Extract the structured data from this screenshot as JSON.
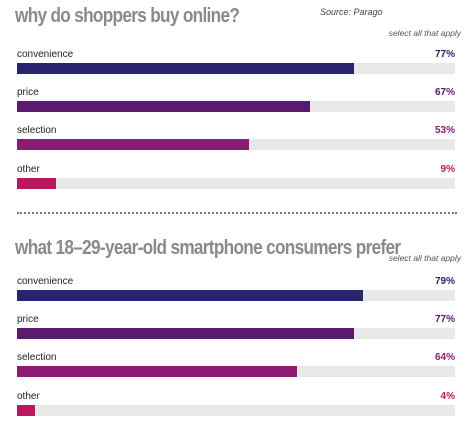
{
  "chart_data": [
    {
      "type": "bar",
      "orientation": "horizontal",
      "title": "why do shoppers buy online?",
      "source": "Source: Parago",
      "note": "select all that apply",
      "categories": [
        "convenience",
        "price",
        "selection",
        "other"
      ],
      "values": [
        77,
        67,
        53,
        9
      ],
      "value_labels": [
        "77%",
        "67%",
        "53%",
        "9%"
      ],
      "colors": [
        "#2a2470",
        "#5a1a6e",
        "#8c1b74",
        "#b8185c"
      ],
      "xlim": [
        0,
        100
      ]
    },
    {
      "type": "bar",
      "orientation": "horizontal",
      "title": "what 18–29-year-old smartphone consumers prefer",
      "note": "select all that apply",
      "categories": [
        "convenience",
        "price",
        "selection",
        "other"
      ],
      "values": [
        79,
        77,
        64,
        4
      ],
      "value_labels": [
        "79%",
        "77%",
        "64%",
        "4%"
      ],
      "colors": [
        "#2a2470",
        "#5a1a6e",
        "#8c1b74",
        "#b8185c"
      ],
      "xlim": [
        0,
        100
      ]
    }
  ]
}
